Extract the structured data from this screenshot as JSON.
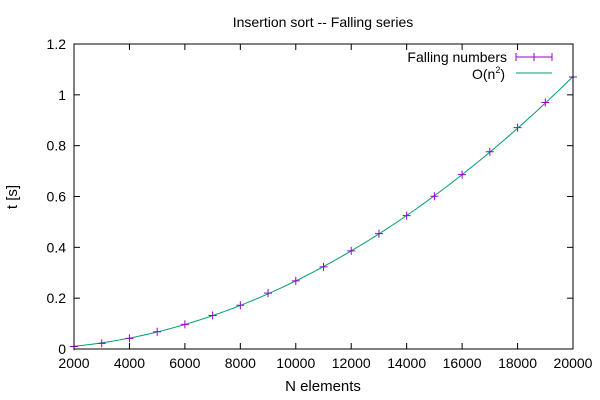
{
  "chart_data": {
    "type": "line",
    "title": "Insertion sort -- Falling series",
    "xlabel": "N elements",
    "ylabel": "t [s]",
    "xlim": [
      2000,
      20000
    ],
    "ylim": [
      0,
      1.2
    ],
    "xticks": [
      2000,
      4000,
      6000,
      8000,
      10000,
      12000,
      14000,
      16000,
      18000,
      20000
    ],
    "yticks": [
      0,
      0.2,
      0.4,
      0.6,
      0.8,
      1,
      1.2
    ],
    "legend_position": "top-right",
    "series": [
      {
        "name": "Falling numbers",
        "style": "points-with-errorbars",
        "color": "#9400d3",
        "x": [
          2000,
          3000,
          4000,
          5000,
          6000,
          7000,
          8000,
          9000,
          10000,
          11000,
          12000,
          13000,
          14000,
          15000,
          16000,
          17000,
          18000,
          19000,
          20000
        ],
        "y": [
          0.01,
          0.022,
          0.042,
          0.068,
          0.097,
          0.132,
          0.172,
          0.22,
          0.268,
          0.323,
          0.386,
          0.454,
          0.525,
          0.601,
          0.686,
          0.776,
          0.871,
          0.97,
          1.07
        ]
      },
      {
        "name_base": "O(n",
        "name_sup": "2",
        "name_tail": ")",
        "style": "line",
        "color": "#009e73",
        "coef": 2.68e-09
      }
    ]
  }
}
